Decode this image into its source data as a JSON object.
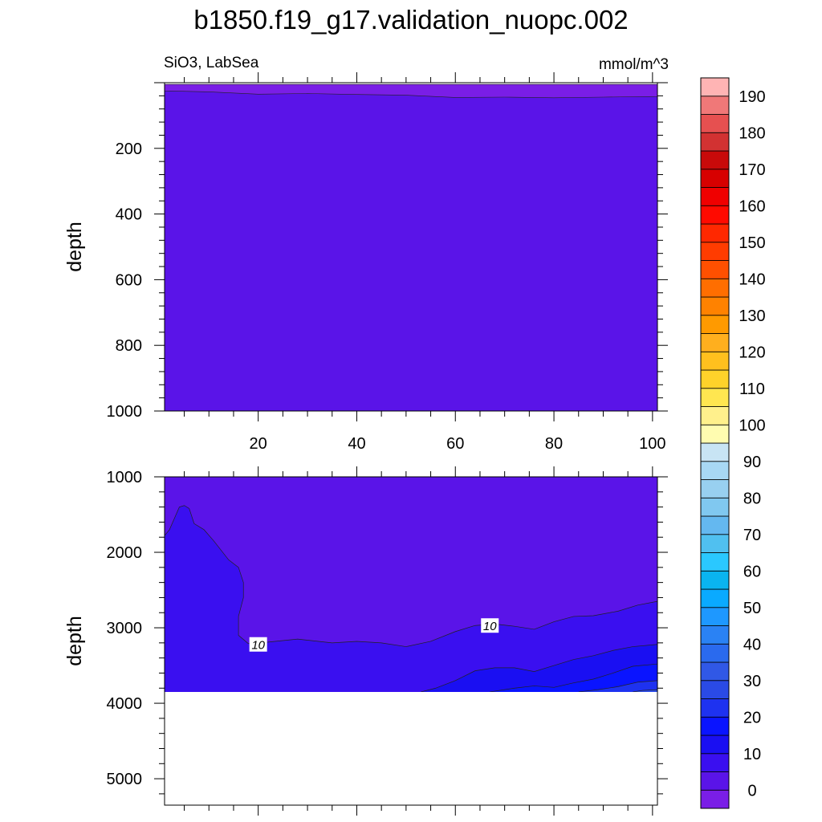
{
  "figure": {
    "title": "b1850.f19_g17.validation_nuopc.002",
    "left_label": "SiO3, LabSea",
    "right_label": "mmol/m^3"
  },
  "colorbar": {
    "levels": [
      0,
      5,
      10,
      15,
      20,
      25,
      30,
      35,
      40,
      45,
      50,
      55,
      60,
      65,
      70,
      75,
      80,
      85,
      90,
      95,
      100,
      105,
      110,
      115,
      120,
      125,
      130,
      135,
      140,
      145,
      150,
      155,
      160,
      165,
      170,
      175,
      180,
      185,
      190,
      195
    ],
    "tick_labels": [
      "0",
      "10",
      "20",
      "30",
      "40",
      "50",
      "60",
      "70",
      "80",
      "90",
      "100",
      "110",
      "120",
      "130",
      "140",
      "150",
      "160",
      "170",
      "180",
      "190"
    ],
    "colors": [
      "#7a1ee6",
      "#5a14e8",
      "#3a0ff0",
      "#1a0ff2",
      "#0a14ff",
      "#1e32f0",
      "#2a4ae6",
      "#3058e6",
      "#2a6aee",
      "#2a82f4",
      "#1e98ff",
      "#0aaaff",
      "#0ab4f0",
      "#2ac8ff",
      "#50c0f0",
      "#64b8f0",
      "#80c8f0",
      "#98d0f0",
      "#a8d8f4",
      "#c8e4f4",
      "#fffcb0",
      "#fff08c",
      "#ffe650",
      "#ffd22a",
      "#ffc01e",
      "#ffaf1e",
      "#ff9a00",
      "#ff8200",
      "#ff6e00",
      "#ff5000",
      "#ff3c00",
      "#ff2800",
      "#ff0a00",
      "#f00000",
      "#d70000",
      "#c80a0a",
      "#d23232",
      "#e65050",
      "#f07878",
      "#ffb4b4"
    ]
  },
  "chart_data": [
    {
      "type": "contour",
      "panel": "upper",
      "x_tick_labels": [
        "20",
        "40",
        "60",
        "80",
        "100"
      ],
      "x_ticks": [
        20,
        40,
        60,
        80,
        100
      ],
      "xlim": [
        1,
        101
      ],
      "ylabel": "depth",
      "y_tick_labels": [
        "200",
        "400",
        "600",
        "800",
        "1000"
      ],
      "y_ticks": [
        200,
        400,
        600,
        800,
        1000
      ],
      "ylim": [
        0,
        1000
      ],
      "y_inverted": true,
      "data_top_depth": 5,
      "regions": [
        {
          "level_band": "0-5",
          "depth_top": 5,
          "depth_bottom_x": [
            1,
            10,
            20,
            30,
            40,
            50,
            60,
            70,
            80,
            90,
            101
          ],
          "depth_bottom": [
            25,
            28,
            35,
            33,
            36,
            38,
            45,
            44,
            46,
            44,
            42
          ]
        },
        {
          "level_band": "5-10",
          "depth_bottom": 1000
        }
      ]
    },
    {
      "type": "contour",
      "panel": "lower",
      "ylabel": "depth",
      "y_tick_labels": [
        "1000",
        "2000",
        "3000",
        "4000",
        "5000"
      ],
      "y_ticks": [
        1000,
        2000,
        3000,
        4000,
        5000
      ],
      "ylim": [
        1000,
        5350
      ],
      "y_inverted": true,
      "xlim": [
        1,
        101
      ],
      "data_bottom_depth": 3850,
      "contour_labels": [
        {
          "text": "10",
          "x": 20,
          "depth": 3220
        },
        {
          "text": "10",
          "x": 67,
          "depth": 2970
        }
      ],
      "contours": [
        {
          "level": 10,
          "x": [
            1,
            2,
            3,
            4,
            5,
            6,
            7,
            9,
            11,
            14,
            16,
            17,
            17,
            16,
            16,
            18,
            22,
            28,
            35,
            40,
            45,
            50,
            55,
            60,
            64,
            68,
            72,
            76,
            80,
            84,
            88,
            93,
            97,
            101
          ],
          "depth": [
            1780,
            1700,
            1550,
            1400,
            1380,
            1420,
            1620,
            1700,
            1850,
            2100,
            2200,
            2400,
            2600,
            2850,
            3100,
            3210,
            3190,
            3150,
            3200,
            3180,
            3200,
            3250,
            3180,
            3050,
            2970,
            2950,
            2980,
            3020,
            2920,
            2850,
            2840,
            2780,
            2700,
            2650
          ]
        },
        {
          "level": 15,
          "x": [
            53,
            56,
            60,
            64,
            68,
            72,
            76,
            80,
            84,
            88,
            92,
            96,
            101
          ],
          "depth": [
            3850,
            3800,
            3700,
            3570,
            3530,
            3530,
            3580,
            3500,
            3420,
            3370,
            3300,
            3250,
            3220
          ]
        },
        {
          "level": 20,
          "x": [
            67,
            72,
            76,
            80,
            84,
            88,
            92,
            96,
            101
          ],
          "depth": [
            3850,
            3800,
            3770,
            3790,
            3730,
            3680,
            3600,
            3510,
            3480
          ]
        },
        {
          "level": 25,
          "x": [
            85,
            89,
            93,
            97,
            101
          ],
          "depth": [
            3850,
            3820,
            3780,
            3720,
            3700
          ]
        },
        {
          "level": 30,
          "x": [
            96,
            98,
            101
          ],
          "depth": [
            3850,
            3830,
            3820
          ]
        }
      ]
    }
  ]
}
